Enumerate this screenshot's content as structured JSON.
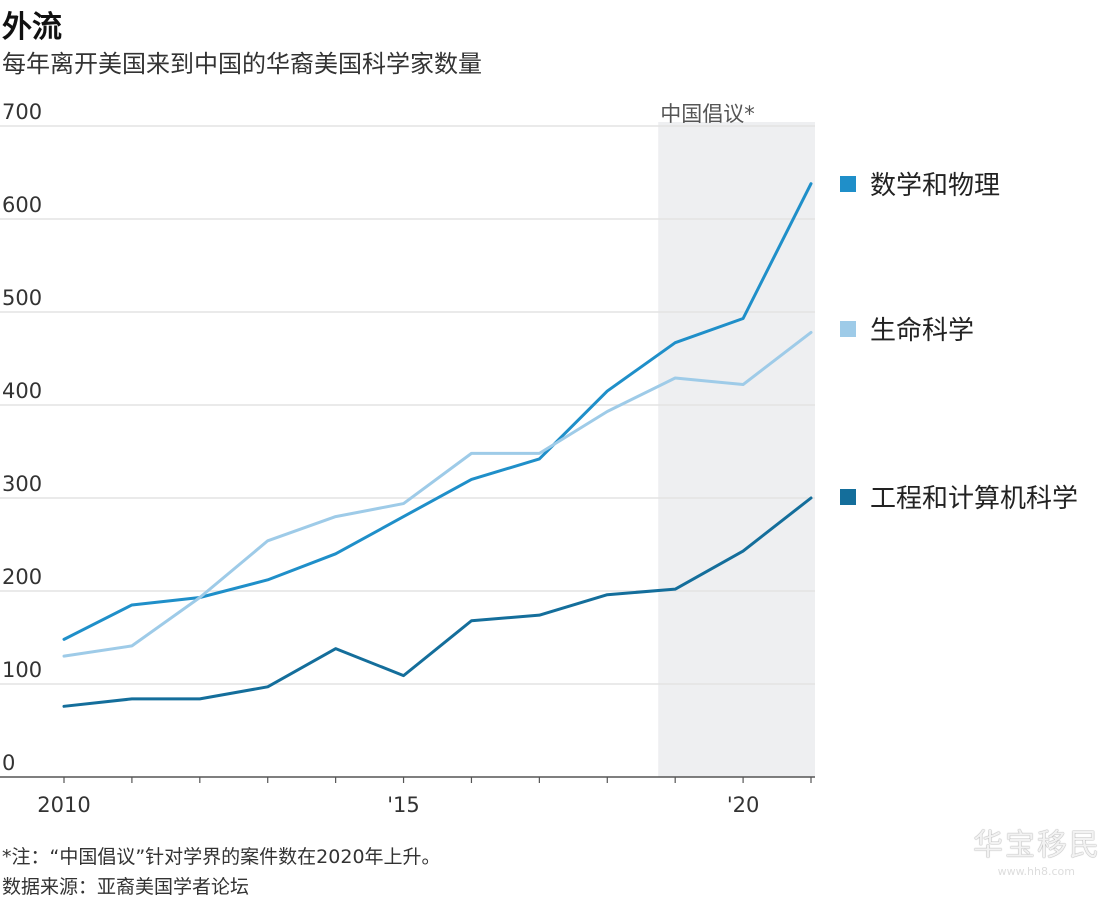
{
  "header": {
    "title": "外流",
    "subtitle": "每年离开美国来到中国的华裔美国科学家数量"
  },
  "notes": {
    "note": "*注：“中国倡议”针对学界的案件数在2020年上升。",
    "source": "数据来源：亚裔美国学者论坛"
  },
  "watermark": {
    "text": "华宝移民",
    "url": "www.hh8.com"
  },
  "chart_data": {
    "type": "line",
    "x": [
      2010,
      2011,
      2012,
      2013,
      2014,
      2015,
      2016,
      2017,
      2018,
      2019,
      2020,
      2021
    ],
    "x_ticks": [
      {
        "value": 2010,
        "label": "2010"
      },
      {
        "value": 2015,
        "label": "'15"
      },
      {
        "value": 2020,
        "label": "'20"
      }
    ],
    "y_ticks": [
      0,
      100,
      200,
      300,
      400,
      500,
      600,
      700
    ],
    "xlim": [
      2010,
      2021.1
    ],
    "ylim": [
      0,
      700
    ],
    "grid": true,
    "legend_position": "right",
    "highlight": {
      "from": 2018.75,
      "to": 2021.1,
      "label": "中国倡议*"
    },
    "series": [
      {
        "name": "数学和物理",
        "color": "#1f8fc9",
        "values": [
          148,
          185,
          193,
          212,
          240,
          280,
          320,
          342,
          415,
          467,
          493,
          638
        ]
      },
      {
        "name": "生命科学",
        "color": "#9ecbe8",
        "values": [
          130,
          141,
          193,
          254,
          280,
          294,
          348,
          348,
          393,
          429,
          422,
          478
        ]
      },
      {
        "name": "工程和计算机科学",
        "color": "#146e9b",
        "values": [
          76,
          84,
          84,
          97,
          138,
          109,
          168,
          174,
          196,
          202,
          243,
          300
        ]
      }
    ]
  }
}
